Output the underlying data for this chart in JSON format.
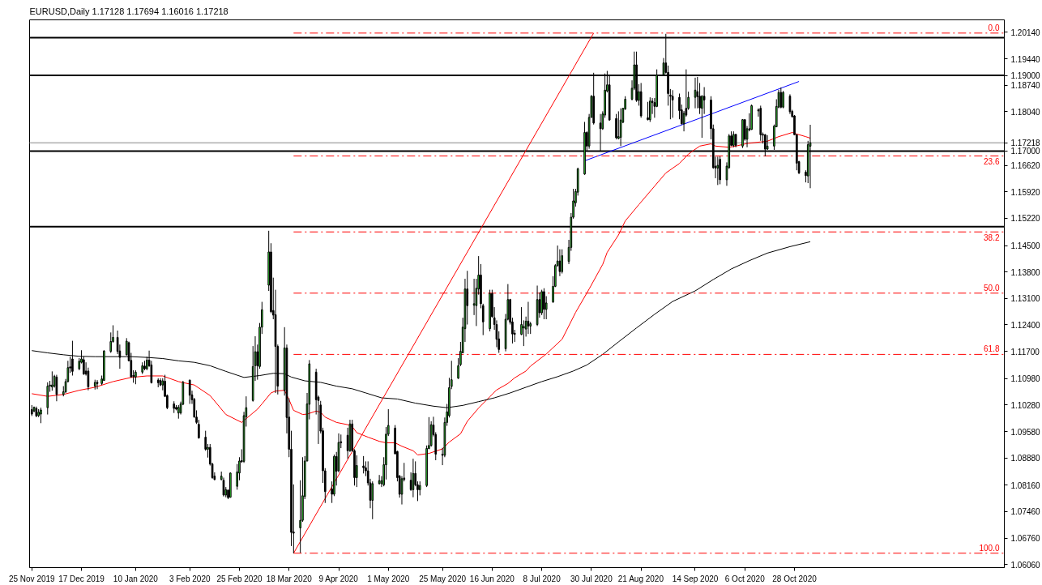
{
  "chart_data": {
    "type": "candlestick",
    "title": "EURUSD,Daily 1.17128 1.17694 1.16016 1.17218",
    "x": [
      "2019-11-25",
      "2019-11-26",
      "2019-11-27",
      "2019-11-28",
      "2019-11-29",
      "2019-12-02",
      "2019-12-03",
      "2019-12-04",
      "2019-12-05",
      "2019-12-06",
      "2019-12-09",
      "2019-12-10",
      "2019-12-11",
      "2019-12-12",
      "2019-12-13",
      "2019-12-16",
      "2019-12-17",
      "2019-12-18",
      "2019-12-19",
      "2019-12-20",
      "2019-12-23",
      "2019-12-24",
      "2019-12-26",
      "2019-12-27",
      "2019-12-30",
      "2019-12-31",
      "2020-01-02",
      "2020-01-03",
      "2020-01-06",
      "2020-01-07",
      "2020-01-08",
      "2020-01-09",
      "2020-01-10",
      "2020-01-13",
      "2020-01-14",
      "2020-01-15",
      "2020-01-16",
      "2020-01-17",
      "2020-01-20",
      "2020-01-21",
      "2020-01-22",
      "2020-01-23",
      "2020-01-24",
      "2020-01-27",
      "2020-01-28",
      "2020-01-29",
      "2020-01-30",
      "2020-01-31",
      "2020-02-03",
      "2020-02-04",
      "2020-02-05",
      "2020-02-06",
      "2020-02-07",
      "2020-02-10",
      "2020-02-11",
      "2020-02-12",
      "2020-02-13",
      "2020-02-14",
      "2020-02-17",
      "2020-02-18",
      "2020-02-19",
      "2020-02-20",
      "2020-02-21",
      "2020-02-24",
      "2020-02-25",
      "2020-02-26",
      "2020-02-27",
      "2020-02-28",
      "2020-03-02",
      "2020-03-03",
      "2020-03-04",
      "2020-03-05",
      "2020-03-06",
      "2020-03-09",
      "2020-03-10",
      "2020-03-11",
      "2020-03-12",
      "2020-03-13",
      "2020-03-16",
      "2020-03-17",
      "2020-03-18",
      "2020-03-19",
      "2020-03-20",
      "2020-03-23",
      "2020-03-24",
      "2020-03-25",
      "2020-03-26",
      "2020-03-27",
      "2020-03-30",
      "2020-03-31",
      "2020-04-01",
      "2020-04-02",
      "2020-04-03",
      "2020-04-06",
      "2020-04-07",
      "2020-04-08",
      "2020-04-09",
      "2020-04-10",
      "2020-04-13",
      "2020-04-14",
      "2020-04-15",
      "2020-04-16",
      "2020-04-17",
      "2020-04-20",
      "2020-04-21",
      "2020-04-22",
      "2020-04-23",
      "2020-04-24",
      "2020-04-27",
      "2020-04-28",
      "2020-04-29",
      "2020-04-30",
      "2020-05-01",
      "2020-05-04",
      "2020-05-05",
      "2020-05-06",
      "2020-05-07",
      "2020-05-08",
      "2020-05-11",
      "2020-05-12",
      "2020-05-13",
      "2020-05-14",
      "2020-05-15",
      "2020-05-18",
      "2020-05-19",
      "2020-05-20",
      "2020-05-21",
      "2020-05-22",
      "2020-05-25",
      "2020-05-26",
      "2020-05-27",
      "2020-05-28",
      "2020-05-29",
      "2020-06-01",
      "2020-06-02",
      "2020-06-03",
      "2020-06-04",
      "2020-06-05",
      "2020-06-08",
      "2020-06-09",
      "2020-06-10",
      "2020-06-11",
      "2020-06-12",
      "2020-06-15",
      "2020-06-16",
      "2020-06-17",
      "2020-06-18",
      "2020-06-19",
      "2020-06-22",
      "2020-06-23",
      "2020-06-24",
      "2020-06-25",
      "2020-06-26",
      "2020-06-29",
      "2020-06-30",
      "2020-07-01",
      "2020-07-02",
      "2020-07-03",
      "2020-07-06",
      "2020-07-07",
      "2020-07-08",
      "2020-07-09",
      "2020-07-10",
      "2020-07-13",
      "2020-07-14",
      "2020-07-15",
      "2020-07-16",
      "2020-07-17",
      "2020-07-20",
      "2020-07-21",
      "2020-07-22",
      "2020-07-23",
      "2020-07-24",
      "2020-07-27",
      "2020-07-28",
      "2020-07-29",
      "2020-07-30",
      "2020-07-31",
      "2020-08-03",
      "2020-08-04",
      "2020-08-05",
      "2020-08-06",
      "2020-08-07",
      "2020-08-10",
      "2020-08-11",
      "2020-08-12",
      "2020-08-13",
      "2020-08-14",
      "2020-08-17",
      "2020-08-18",
      "2020-08-19",
      "2020-08-20",
      "2020-08-21",
      "2020-08-24",
      "2020-08-25",
      "2020-08-26",
      "2020-08-27",
      "2020-08-28",
      "2020-08-31",
      "2020-09-01",
      "2020-09-02",
      "2020-09-03",
      "2020-09-04",
      "2020-09-07",
      "2020-09-08",
      "2020-09-09",
      "2020-09-10",
      "2020-09-11",
      "2020-09-14",
      "2020-09-15",
      "2020-09-16",
      "2020-09-17",
      "2020-09-18",
      "2020-09-21",
      "2020-09-22",
      "2020-09-23",
      "2020-09-24",
      "2020-09-25",
      "2020-09-28",
      "2020-09-29",
      "2020-09-30",
      "2020-10-01",
      "2020-10-02",
      "2020-10-05",
      "2020-10-06",
      "2020-10-07",
      "2020-10-08",
      "2020-10-09",
      "2020-10-12",
      "2020-10-13",
      "2020-10-14",
      "2020-10-15",
      "2020-10-16",
      "2020-10-19",
      "2020-10-20",
      "2020-10-21",
      "2020-10-22",
      "2020-10-23",
      "2020-10-26",
      "2020-10-27",
      "2020-10-28",
      "2020-10-29",
      "2020-10-30",
      "2020-11-02",
      "2020-11-03",
      "2020-11-04"
    ],
    "ohlc": [
      [
        1.1016,
        1.1028,
        1.0999,
        1.1004
      ],
      [
        1.1012,
        1.1024,
        1.1009,
        1.1022
      ],
      [
        1.1019,
        1.1024,
        1.0996,
        1.0999
      ],
      [
        1.1,
        1.1017,
        1.0996,
        1.1009
      ],
      [
        1.1004,
        1.1021,
        1.098,
        1.1015
      ],
      [
        1.1021,
        1.1088,
        1.1003,
        1.1078
      ],
      [
        1.1078,
        1.1092,
        1.1063,
        1.1081
      ],
      [
        1.1076,
        1.1117,
        1.1066,
        1.1081
      ],
      [
        1.1078,
        1.1108,
        1.1074,
        1.1104
      ],
      [
        1.1102,
        1.1108,
        1.1038,
        1.1056
      ],
      [
        1.1056,
        1.1078,
        1.1051,
        1.1063
      ],
      [
        1.1063,
        1.1097,
        1.106,
        1.109
      ],
      [
        1.109,
        1.1145,
        1.1088,
        1.1127
      ],
      [
        1.1129,
        1.1156,
        1.1113,
        1.1126
      ],
      [
        1.115,
        1.1198,
        1.1106,
        1.1117
      ],
      [
        1.1124,
        1.1152,
        1.112,
        1.1144
      ],
      [
        1.1141,
        1.1173,
        1.1138,
        1.115
      ],
      [
        1.1148,
        1.1156,
        1.1108,
        1.111
      ],
      [
        1.1118,
        1.1141,
        1.1106,
        1.111
      ],
      [
        1.1118,
        1.1127,
        1.1067,
        1.1076
      ],
      [
        1.1078,
        1.1095,
        1.1069,
        1.1088
      ],
      [
        1.1088,
        1.1094,
        1.107,
        1.1085
      ],
      [
        1.1085,
        1.1106,
        1.1081,
        1.1097
      ],
      [
        1.1093,
        1.1173,
        1.1092,
        1.1171
      ],
      [
        1.117,
        1.122,
        1.1166,
        1.1196
      ],
      [
        1.1196,
        1.1239,
        1.1193,
        1.1207
      ],
      [
        1.1207,
        1.1225,
        1.1163,
        1.117
      ],
      [
        1.1171,
        1.1188,
        1.1124,
        1.1154
      ],
      [
        1.1161,
        1.1205,
        1.1159,
        1.1197
      ],
      [
        1.1193,
        1.1196,
        1.1144,
        1.1145
      ],
      [
        1.1146,
        1.1166,
        1.1101,
        1.1102
      ],
      [
        1.1106,
        1.112,
        1.1087,
        1.1104
      ],
      [
        1.1102,
        1.112,
        1.1083,
        1.1115
      ],
      [
        1.1115,
        1.1141,
        1.111,
        1.1132
      ],
      [
        1.1131,
        1.1145,
        1.112,
        1.1124
      ],
      [
        1.1124,
        1.1156,
        1.112,
        1.1147
      ],
      [
        1.1147,
        1.1172,
        1.1129,
        1.1132
      ],
      [
        1.1134,
        1.1145,
        1.1085,
        1.1087
      ],
      [
        1.1094,
        1.1099,
        1.1075,
        1.1087
      ],
      [
        1.1093,
        1.1099,
        1.1078,
        1.1081
      ],
      [
        1.1081,
        1.1099,
        1.1067,
        1.1092
      ],
      [
        1.1091,
        1.1108,
        1.1049,
        1.1051
      ],
      [
        1.1053,
        1.1056,
        1.1017,
        1.1021
      ],
      [
        1.1031,
        1.1038,
        1.1007,
        1.1019
      ],
      [
        1.1022,
        1.1028,
        1.1014,
        1.1017
      ],
      [
        1.1007,
        1.1028,
        1.0992,
        1.1022
      ],
      [
        1.1007,
        1.1037,
        1.1003,
        1.1031
      ],
      [
        1.103,
        1.1092,
        1.1028,
        1.1088
      ],
      [
        1.1094,
        1.1095,
        1.1031,
        1.1054
      ],
      [
        1.1055,
        1.1066,
        1.1031,
        1.1042
      ],
      [
        1.1043,
        1.1047,
        1.0995,
        1.0996
      ],
      [
        1.0996,
        1.1014,
        1.0978,
        1.0982
      ],
      [
        1.0977,
        1.0989,
        1.0939,
        1.0941
      ],
      [
        1.0943,
        1.096,
        1.0907,
        1.0911
      ],
      [
        1.0911,
        1.0925,
        1.0889,
        1.0916
      ],
      [
        1.0916,
        1.0925,
        1.0868,
        1.0872
      ],
      [
        1.0872,
        1.0875,
        1.0833,
        1.0836
      ],
      [
        1.084,
        1.085,
        1.0829,
        1.0831
      ],
      [
        1.0831,
        1.0852,
        1.0829,
        1.084
      ],
      [
        1.0829,
        1.0836,
        1.0786,
        1.079
      ],
      [
        1.079,
        1.0811,
        1.0784,
        1.0804
      ],
      [
        1.0803,
        1.0804,
        1.0779,
        1.0783
      ],
      [
        1.0784,
        1.085,
        1.0783,
        1.0848
      ],
      [
        1.0813,
        1.0872,
        1.0804,
        1.0851
      ],
      [
        1.0848,
        1.089,
        1.0829,
        1.088
      ],
      [
        1.0881,
        1.0911,
        1.0875,
        1.0878
      ],
      [
        1.0879,
        1.101,
        1.0875,
        1.1
      ],
      [
        1.0997,
        1.1051,
        1.0971,
        1.1021
      ],
      [
        1.104,
        1.1184,
        1.1037,
        1.113
      ],
      [
        1.1132,
        1.121,
        1.1092,
        1.1169
      ],
      [
        1.1169,
        1.1188,
        1.1095,
        1.1132
      ],
      [
        1.113,
        1.1245,
        1.1124,
        1.1234
      ],
      [
        1.1234,
        1.1301,
        1.1216,
        1.128
      ],
      [
        1.1345,
        1.1489,
        1.133,
        1.1433
      ],
      [
        1.1433,
        1.1456,
        1.1271,
        1.1275
      ],
      [
        1.1278,
        1.1365,
        1.1255,
        1.1266
      ],
      [
        1.1267,
        1.1333,
        1.106,
        1.1183
      ],
      [
        1.1183,
        1.1188,
        1.1056,
        1.1078
      ],
      [
        1.1067,
        1.1234,
        1.1053,
        1.1179
      ],
      [
        1.1179,
        1.1188,
        1.0953,
        1.0995
      ],
      [
        1.0996,
        1.1046,
        1.089,
        1.0911
      ],
      [
        1.0911,
        1.096,
        1.0655,
        1.0691
      ],
      [
        1.0692,
        1.0818,
        1.0636,
        1.0689
      ],
      [
        1.0703,
        1.0829,
        1.0637,
        1.0723
      ],
      [
        1.0723,
        1.089,
        1.0719,
        1.0788
      ],
      [
        1.0786,
        1.0893,
        1.0779,
        1.088
      ],
      [
        1.088,
        1.106,
        1.0879,
        1.1031
      ],
      [
        1.103,
        1.1147,
        1.099,
        1.1137
      ],
      [
        1.1115,
        1.1124,
        1.1003,
        1.1042
      ],
      [
        1.1049,
        1.1053,
        1.0925,
        1.104
      ],
      [
        1.1028,
        1.1039,
        1.0953,
        1.0959
      ],
      [
        1.096,
        1.0968,
        1.0822,
        1.0854
      ],
      [
        1.0854,
        1.0861,
        1.0769,
        1.0799
      ],
      [
        1.0806,
        1.0826,
        1.0769,
        1.0792
      ],
      [
        1.0792,
        1.0897,
        1.0787,
        1.0892
      ],
      [
        1.0892,
        1.0904,
        1.0815,
        1.0853
      ],
      [
        1.0854,
        1.0953,
        1.085,
        1.0929
      ],
      [
        1.0931,
        1.095,
        1.0914,
        1.0928
      ],
      [
        1.0948,
        1.0968,
        1.0886,
        1.0907
      ],
      [
        1.0907,
        1.0989,
        1.0904,
        1.0978
      ],
      [
        1.0978,
        1.0989,
        1.0904,
        1.0907
      ],
      [
        1.0907,
        1.0911,
        1.0815,
        1.0836
      ],
      [
        1.0836,
        1.0895,
        1.0811,
        1.0868
      ],
      [
        1.0867,
        1.0893,
        1.0847,
        1.0862
      ],
      [
        1.0862,
        1.0879,
        1.084,
        1.0854
      ],
      [
        1.0854,
        1.0879,
        1.0815,
        1.0822
      ],
      [
        1.0822,
        1.0833,
        1.0755,
        1.0776
      ],
      [
        1.0776,
        1.0826,
        1.0726,
        1.082
      ],
      [
        1.082,
        1.0843,
        1.0818,
        1.0828
      ],
      [
        1.082,
        1.084,
        1.0811,
        1.0828
      ],
      [
        1.0817,
        1.089,
        1.0813,
        1.087
      ],
      [
        1.087,
        1.097,
        1.0831,
        1.0951
      ],
      [
        1.0951,
        1.1017,
        1.0946,
        1.0974
      ],
      [
        1.0967,
        1.0975,
        1.0897,
        1.0899
      ],
      [
        1.0905,
        1.0907,
        1.0826,
        1.0836
      ],
      [
        1.084,
        1.0843,
        1.0783,
        1.0792
      ],
      [
        1.0792,
        1.084,
        1.0765,
        1.0833
      ],
      [
        1.0835,
        1.0875,
        1.0826,
        1.0831
      ],
      [
        1.0829,
        1.085,
        1.0801,
        1.0804
      ],
      [
        1.0804,
        1.0886,
        1.0784,
        1.0847
      ],
      [
        1.0847,
        1.0879,
        1.0813,
        1.0817
      ],
      [
        1.0817,
        1.0826,
        1.0774,
        1.0804
      ],
      [
        1.0804,
        1.0826,
        1.0789,
        1.0815
      ],
      [
        1.0815,
        1.0921,
        1.0811,
        1.0913
      ],
      [
        1.0913,
        1.0996,
        1.0911,
        1.0921
      ],
      [
        1.0921,
        1.0985,
        1.0918,
        1.0976
      ],
      [
        1.0975,
        1.0997,
        1.0945,
        1.095
      ],
      [
        1.095,
        1.0956,
        1.0882,
        1.0898
      ],
      [
        1.0898,
        1.0915,
        1.0869,
        1.0895
      ],
      [
        1.0895,
        1.0995,
        1.089,
        1.0982
      ],
      [
        1.0982,
        1.1031,
        1.0973,
        1.101
      ],
      [
        1.1,
        1.11,
        1.0995,
        1.1074
      ],
      [
        1.1077,
        1.1145,
        1.107,
        1.1095
      ],
      [
        1.1099,
        1.1152,
        1.1097,
        1.1132
      ],
      [
        1.1135,
        1.1195,
        1.1131,
        1.117
      ],
      [
        1.1166,
        1.1259,
        1.1165,
        1.1234
      ],
      [
        1.123,
        1.1362,
        1.1195,
        1.1335
      ],
      [
        1.1335,
        1.1383,
        1.1241,
        1.1291
      ],
      [
        1.1292,
        1.1362,
        1.1266,
        1.1296
      ],
      [
        1.1291,
        1.1362,
        1.1237,
        1.1337
      ],
      [
        1.1335,
        1.1422,
        1.132,
        1.1372
      ],
      [
        1.1372,
        1.1401,
        1.1284,
        1.1296
      ],
      [
        1.1291,
        1.1296,
        1.1213,
        1.1248
      ],
      [
        1.123,
        1.1333,
        1.1223,
        1.1323
      ],
      [
        1.1323,
        1.1333,
        1.1259,
        1.1262
      ],
      [
        1.1259,
        1.1287,
        1.1227,
        1.1241
      ],
      [
        1.1241,
        1.1252,
        1.1181,
        1.1202
      ],
      [
        1.1203,
        1.1223,
        1.1166,
        1.1175
      ],
      [
        1.1177,
        1.1269,
        1.117,
        1.1255
      ],
      [
        1.1255,
        1.1348,
        1.1252,
        1.1307
      ],
      [
        1.1307,
        1.1309,
        1.1241,
        1.1247
      ],
      [
        1.1248,
        1.1259,
        1.1191,
        1.1216
      ],
      [
        1.1218,
        1.1227,
        1.1195,
        1.1215
      ],
      [
        1.1215,
        1.1287,
        1.1213,
        1.1241
      ],
      [
        1.1232,
        1.1252,
        1.1184,
        1.1236
      ],
      [
        1.1229,
        1.1262,
        1.1209,
        1.125
      ],
      [
        1.125,
        1.1301,
        1.1216,
        1.1237
      ],
      [
        1.1237,
        1.1248,
        1.1216,
        1.1243
      ],
      [
        1.1241,
        1.1344,
        1.1237,
        1.1307
      ],
      [
        1.1307,
        1.1326,
        1.1259,
        1.1272
      ],
      [
        1.1272,
        1.1333,
        1.1266,
        1.1328
      ],
      [
        1.1328,
        1.1337,
        1.1255,
        1.1281
      ],
      [
        1.1281,
        1.1316,
        1.1255,
        1.1298
      ],
      [
        1.1301,
        1.1369,
        1.1298,
        1.1342
      ],
      [
        1.1342,
        1.1401,
        1.134,
        1.1397
      ],
      [
        1.1397,
        1.145,
        1.1394,
        1.1409
      ],
      [
        1.1409,
        1.144,
        1.1369,
        1.1381
      ],
      [
        1.1381,
        1.144,
        1.1376,
        1.1423
      ],
      [
        1.1408,
        1.1465,
        1.1401,
        1.1445
      ],
      [
        1.1445,
        1.1536,
        1.1436,
        1.1525
      ],
      [
        1.1525,
        1.16,
        1.1521,
        1.1568
      ],
      [
        1.1563,
        1.16,
        1.1553,
        1.1593
      ],
      [
        1.1591,
        1.1656,
        1.1582,
        1.1653
      ],
      [
        1.1639,
        1.1777,
        1.1637,
        1.1749
      ],
      [
        1.1749,
        1.1752,
        1.1699,
        1.1713
      ],
      [
        1.1713,
        1.1798,
        1.1706,
        1.1789
      ],
      [
        1.1789,
        1.1848,
        1.1788,
        1.1845
      ],
      [
        1.1845,
        1.1907,
        1.177,
        1.1774
      ],
      [
        1.1774,
        1.1798,
        1.1699,
        1.1759
      ],
      [
        1.1759,
        1.1805,
        1.1756,
        1.1798
      ],
      [
        1.1795,
        1.1905,
        1.1788,
        1.1861
      ],
      [
        1.1859,
        1.1912,
        1.1855,
        1.1875
      ],
      [
        1.1875,
        1.1901,
        1.1781,
        1.1782
      ],
      [
        1.1786,
        1.1798,
        1.1731,
        1.1735
      ],
      [
        1.1733,
        1.1805,
        1.1731,
        1.1738
      ],
      [
        1.1736,
        1.1813,
        1.1713,
        1.1782
      ],
      [
        1.1776,
        1.1814,
        1.1774,
        1.1813
      ],
      [
        1.1811,
        1.1845,
        1.1809,
        1.1837
      ],
      [
        1.1837,
        1.1887,
        1.1834,
        1.1866
      ],
      [
        1.1866,
        1.1963,
        1.1861,
        1.1928
      ],
      [
        1.1928,
        1.1963,
        1.183,
        1.1834
      ],
      [
        1.1834,
        1.1877,
        1.182,
        1.1857
      ],
      [
        1.1857,
        1.188,
        1.1788,
        1.1793
      ],
      [
        1.1788,
        1.183,
        1.1781,
        1.1783
      ],
      [
        1.1783,
        1.1842,
        1.1777,
        1.1832
      ],
      [
        1.1832,
        1.184,
        1.1798,
        1.1828
      ],
      [
        1.1828,
        1.184,
        1.1788,
        1.1818
      ],
      [
        1.1818,
        1.1916,
        1.1816,
        1.1901
      ],
      [
        1.1901,
        1.1946,
        1.1899,
        1.1933
      ],
      [
        1.1933,
        1.201,
        1.1905,
        1.1908
      ],
      [
        1.1908,
        1.1926,
        1.182,
        1.1852
      ],
      [
        1.1848,
        1.1864,
        1.1784,
        1.1845
      ],
      [
        1.1845,
        1.1861,
        1.1788,
        1.1835
      ],
      [
        1.1842,
        1.1852,
        1.1784,
        1.1807
      ],
      [
        1.1809,
        1.1823,
        1.177,
        1.1772
      ],
      [
        1.1772,
        1.1806,
        1.1752,
        1.18
      ],
      [
        1.1813,
        1.1916,
        1.1791,
        1.1795
      ],
      [
        1.1813,
        1.1857,
        1.1809,
        1.1842
      ],
      [
        1.1842,
        1.1894,
        1.1813,
        1.1861
      ],
      [
        1.1857,
        1.1896,
        1.1813,
        1.1844
      ],
      [
        1.1845,
        1.188,
        1.1798,
        1.1814
      ],
      [
        1.1813,
        1.1848,
        1.1735,
        1.1845
      ],
      [
        1.1845,
        1.1869,
        1.1798,
        1.1835
      ],
      [
        1.1835,
        1.1845,
        1.1731,
        1.1759
      ],
      [
        1.1759,
        1.177,
        1.1653,
        1.1656
      ],
      [
        1.166,
        1.1685,
        1.1628,
        1.1655
      ],
      [
        1.1655,
        1.1685,
        1.161,
        1.1662
      ],
      [
        1.1678,
        1.1686,
        1.1612,
        1.1624
      ],
      [
        1.1624,
        1.167,
        1.1608,
        1.166
      ],
      [
        1.1656,
        1.1745,
        1.1653,
        1.174
      ],
      [
        1.174,
        1.1752,
        1.1713,
        1.1715
      ],
      [
        1.1715,
        1.1752,
        1.171,
        1.1744
      ],
      [
        1.1744,
        1.1745,
        1.171,
        1.1715
      ],
      [
        1.1713,
        1.1784,
        1.1708,
        1.1783
      ],
      [
        1.1783,
        1.1784,
        1.1727,
        1.1731
      ],
      [
        1.1731,
        1.1766,
        1.171,
        1.1759
      ],
      [
        1.1759,
        1.18,
        1.1752,
        1.1756
      ],
      [
        1.1757,
        1.1823,
        1.1756,
        1.182
      ],
      [
        1.1809,
        1.1813,
        1.1791,
        1.1806
      ],
      [
        1.1813,
        1.182,
        1.1727,
        1.1743
      ],
      [
        1.1744,
        1.1749,
        1.172,
        1.1742
      ],
      [
        1.1743,
        1.1745,
        1.1686,
        1.1705
      ],
      [
        1.1705,
        1.1742,
        1.1703,
        1.1713
      ],
      [
        1.1713,
        1.177,
        1.1703,
        1.1766
      ],
      [
        1.1764,
        1.1837,
        1.1763,
        1.1818
      ],
      [
        1.1816,
        1.1862,
        1.1813,
        1.1855
      ],
      [
        1.1855,
        1.1868,
        1.1813,
        1.1816
      ],
      [
        1.1816,
        1.1859,
        1.1813,
        1.1855
      ],
      [
        1.1845,
        1.185,
        1.1798,
        1.1804
      ],
      [
        1.1805,
        1.1809,
        1.1788,
        1.1791
      ],
      [
        1.1793,
        1.1795,
        1.1742,
        1.1743
      ],
      [
        1.1743,
        1.1745,
        1.1649,
        1.1668
      ],
      [
        1.1672,
        1.1674,
        1.1639,
        1.1642
      ],
      [
        1.1644,
        1.1649,
        1.1617,
        1.1635
      ],
      [
        1.1634,
        1.1727,
        1.1615,
        1.1717
      ],
      [
        1.17128,
        1.17694,
        1.16016,
        1.17218
      ]
    ],
    "colors": [
      "#000000",
      "#32cd32",
      "#000000",
      "#32cd32",
      "#32cd32",
      "#32cd32",
      "#32cd32",
      "#32cd32",
      "#32cd32",
      "#000000",
      "#32cd32",
      "#32cd32",
      "#32cd32",
      "#000000",
      "#000000",
      "#32cd32",
      "#32cd32",
      "#000000",
      "#000000",
      "#000000",
      "#32cd32",
      "#000000",
      "#32cd32",
      "#32cd32",
      "#32cd32",
      "#32cd32",
      "#000000",
      "#000000",
      "#32cd32",
      "#000000",
      "#000000",
      "#000000",
      "#32cd32",
      "#32cd32",
      "#000000",
      "#32cd32",
      "#000000",
      "#000000",
      "#000000",
      "#000000",
      "#32cd32",
      "#000000",
      "#000000",
      "#000000",
      "#000000",
      "#32cd32",
      "#32cd32",
      "#32cd32",
      "#000000",
      "#000000",
      "#000000",
      "#000000",
      "#000000",
      "#000000",
      "#32cd32",
      "#000000",
      "#000000",
      "#000000",
      "#32cd32",
      "#000000",
      "#32cd32",
      "#000000",
      "#32cd32",
      "#32cd32",
      "#32cd32",
      "#000000",
      "#32cd32",
      "#32cd32",
      "#32cd32",
      "#32cd32",
      "#000000",
      "#32cd32",
      "#32cd32",
      "#32cd32",
      "#000000",
      "#000000",
      "#000000",
      "#000000",
      "#32cd32",
      "#000000",
      "#000000",
      "#000000",
      "#000000",
      "#32cd32",
      "#32cd32",
      "#32cd32",
      "#32cd32",
      "#32cd32",
      "#000000",
      "#000000",
      "#000000",
      "#000000",
      "#000000",
      "#000000",
      "#32cd32",
      "#000000",
      "#32cd32",
      "#000000",
      "#000000",
      "#32cd32",
      "#000000",
      "#000000",
      "#32cd32",
      "#000000",
      "#000000",
      "#000000",
      "#000000",
      "#32cd32",
      "#32cd32",
      "#32cd32",
      "#32cd32",
      "#32cd32",
      "#32cd32",
      "#000000",
      "#000000",
      "#000000",
      "#32cd32",
      "#000000",
      "#000000",
      "#32cd32",
      "#000000",
      "#000000",
      "#32cd32",
      "#32cd32",
      "#32cd32",
      "#32cd32",
      "#000000",
      "#000000",
      "#000000",
      "#32cd32",
      "#32cd32",
      "#32cd32",
      "#32cd32",
      "#32cd32",
      "#32cd32",
      "#32cd32",
      "#32cd32",
      "#000000",
      "#32cd32",
      "#32cd32",
      "#32cd32",
      "#000000",
      "#000000",
      "#32cd32",
      "#000000",
      "#000000",
      "#000000",
      "#000000",
      "#32cd32",
      "#32cd32",
      "#000000",
      "#000000",
      "#000000",
      "#32cd32",
      "#32cd32",
      "#32cd32",
      "#000000",
      "#32cd32",
      "#32cd32",
      "#000000",
      "#32cd32",
      "#000000",
      "#32cd32",
      "#32cd32",
      "#32cd32",
      "#32cd32",
      "#000000",
      "#32cd32",
      "#32cd32",
      "#32cd32",
      "#32cd32",
      "#32cd32",
      "#32cd32",
      "#32cd32",
      "#000000",
      "#32cd32",
      "#32cd32",
      "#000000",
      "#000000",
      "#32cd32",
      "#32cd32",
      "#32cd32",
      "#000000",
      "#000000",
      "#32cd32",
      "#32cd32",
      "#32cd32",
      "#32cd32",
      "#32cd32",
      "#32cd32",
      "#000000",
      "#32cd32",
      "#000000",
      "#000000",
      "#32cd32",
      "#000000",
      "#000000",
      "#32cd32",
      "#32cd32",
      "#000000",
      "#000000",
      "#000000",
      "#000000",
      "#000000",
      "#000000",
      "#32cd32",
      "#000000",
      "#32cd32",
      "#32cd32",
      "#000000",
      "#000000",
      "#32cd32",
      "#000000",
      "#000000",
      "#000000",
      "#000000",
      "#32cd32",
      "#000000",
      "#32cd32",
      "#32cd32",
      "#000000",
      "#32cd32",
      "#000000",
      "#32cd32",
      "#000000",
      "#32cd32",
      "#000000",
      "#32cd32",
      "#000000",
      "#000000",
      "#000000",
      "#000000",
      "#32cd32",
      "#32cd32",
      "#32cd32",
      "#32cd32",
      "#000000",
      "#32cd32",
      "#000000",
      "#000000",
      "#000000",
      "#000000",
      "#000000",
      "#000000",
      "#32cd32",
      "#32cd32"
    ],
    "series": [
      {
        "type": "line",
        "color": "#ff0000",
        "x": [
          "2019-11-25",
          "2019-12-02",
          "2019-12-09",
          "2019-12-16",
          "2019-12-23",
          "2019-12-31",
          "2020-01-08",
          "2020-01-15",
          "2020-01-22",
          "2020-01-29",
          "2020-02-05",
          "2020-02-12",
          "2020-02-19",
          "2020-02-26",
          "2020-03-04",
          "2020-03-06",
          "2020-03-10",
          "2020-03-12",
          "2020-03-16",
          "2020-03-18",
          "2020-03-20",
          "2020-03-24",
          "2020-03-26",
          "2020-03-30",
          "2020-04-01",
          "2020-04-03",
          "2020-04-08",
          "2020-04-13",
          "2020-04-15",
          "2020-04-17",
          "2020-04-22",
          "2020-04-27",
          "2020-04-30",
          "2020-05-04",
          "2020-05-07",
          "2020-05-12",
          "2020-05-14",
          "2020-05-19",
          "2020-05-25",
          "2020-05-28",
          "2020-06-02",
          "2020-06-05",
          "2020-06-10",
          "2020-06-15",
          "2020-06-18",
          "2020-06-23",
          "2020-06-26",
          "2020-07-01",
          "2020-07-03",
          "2020-07-10",
          "2020-07-17",
          "2020-07-23",
          "2020-07-29",
          "2020-08-04",
          "2020-08-06",
          "2020-08-11",
          "2020-08-14",
          "2020-08-20",
          "2020-08-27",
          "2020-09-01",
          "2020-09-07",
          "2020-09-11",
          "2020-09-16",
          "2020-09-21",
          "2020-09-23",
          "2020-09-29",
          "2020-10-02",
          "2020-10-07",
          "2020-10-13",
          "2020-10-16",
          "2020-10-21",
          "2020-10-27",
          "2020-10-29",
          "2020-11-02",
          "2020-11-04"
        ],
        "values": [
          1.1058,
          1.1051,
          1.1056,
          1.1067,
          1.1075,
          1.109,
          1.1101,
          1.1105,
          1.1105,
          1.109,
          1.1081,
          1.1053,
          1.1003,
          1.0982,
          1.1017,
          1.1031,
          1.106,
          1.1065,
          1.1067,
          1.1042,
          1.1014,
          1.1003,
          1.1004,
          1.1012,
          1.1009,
          1.0996,
          1.0982,
          1.0976,
          1.0971,
          1.0955,
          1.0943,
          1.0932,
          1.0928,
          1.0928,
          1.0919,
          1.0907,
          1.0896,
          1.09,
          1.0912,
          1.093,
          1.0952,
          1.0985,
          1.102,
          1.105,
          1.1068,
          1.1085,
          1.11,
          1.1118,
          1.1131,
          1.1163,
          1.1202,
          1.1273,
          1.1335,
          1.14,
          1.1432,
          1.1478,
          1.1515,
          1.1558,
          1.1607,
          1.1642,
          1.1667,
          1.1692,
          1.1713,
          1.1719,
          1.1713,
          1.171,
          1.1713,
          1.172,
          1.1724,
          1.1726,
          1.1738,
          1.1749,
          1.1745,
          1.1738,
          1.1734
        ]
      },
      {
        "type": "line",
        "color": "#000000",
        "x": [
          "2019-11-25",
          "2019-12-02",
          "2019-12-09",
          "2019-12-16",
          "2019-12-23",
          "2020-01-08",
          "2020-01-15",
          "2020-01-22",
          "2020-01-29",
          "2020-02-05",
          "2020-02-12",
          "2020-02-19",
          "2020-02-24",
          "2020-02-27",
          "2020-03-05",
          "2020-03-11",
          "2020-03-16",
          "2020-03-19",
          "2020-03-25",
          "2020-04-01",
          "2020-04-08",
          "2020-04-15",
          "2020-04-21",
          "2020-04-28",
          "2020-05-05",
          "2020-05-13",
          "2020-05-21",
          "2020-05-27",
          "2020-06-03",
          "2020-06-10",
          "2020-06-17",
          "2020-06-24",
          "2020-07-01",
          "2020-07-08",
          "2020-07-15",
          "2020-07-22",
          "2020-07-28",
          "2020-08-04",
          "2020-08-11",
          "2020-08-19",
          "2020-08-27",
          "2020-09-04",
          "2020-09-14",
          "2020-09-22",
          "2020-09-30",
          "2020-10-08",
          "2020-10-16",
          "2020-10-26",
          "2020-11-04"
        ],
        "values": [
          1.1172,
          1.1166,
          1.1161,
          1.1157,
          1.1156,
          1.1156,
          1.1154,
          1.1151,
          1.1145,
          1.1141,
          1.1132,
          1.1117,
          1.1107,
          1.1101,
          1.1106,
          1.1112,
          1.1111,
          1.1102,
          1.1092,
          1.1088,
          1.1078,
          1.1071,
          1.106,
          1.1047,
          1.1044,
          1.1033,
          1.1025,
          1.1021,
          1.1027,
          1.1037,
          1.1047,
          1.106,
          1.1075,
          1.109,
          1.1103,
          1.1118,
          1.1134,
          1.1162,
          1.1195,
          1.1232,
          1.1268,
          1.1302,
          1.133,
          1.136,
          1.1388,
          1.141,
          1.143,
          1.1447,
          1.146
        ]
      },
      {
        "type": "line",
        "color": "#ff0000",
        "x": [
          "2020-03-20",
          "2020-07-31"
        ],
        "values": [
          1.0636,
          1.2012
        ]
      },
      {
        "type": "line",
        "color": "#0000ff",
        "x": [
          "2020-07-27",
          "2020-10-30"
        ],
        "values": [
          1.1674,
          1.1884
        ]
      },
      {
        "type": "line",
        "name": "0.0",
        "color": "#ff0000",
        "line_style": "dashed",
        "x": [
          "2020-03-20",
          "2021-01-29"
        ],
        "values": [
          1.2012,
          1.2012
        ]
      },
      {
        "type": "line",
        "name": "23.6",
        "color": "#ff0000",
        "line_style": "dashed",
        "x": [
          "2020-03-20",
          "2021-01-29"
        ],
        "values": [
          1.1687,
          1.1687
        ]
      },
      {
        "type": "line",
        "name": "38.2",
        "color": "#ff0000",
        "line_style": "dashed",
        "x": [
          "2020-03-20",
          "2021-01-29"
        ],
        "values": [
          1.1486,
          1.1486
        ]
      },
      {
        "type": "line",
        "name": "50.0",
        "color": "#ff0000",
        "line_style": "dashed",
        "x": [
          "2020-03-20",
          "2021-01-29"
        ],
        "values": [
          1.1324,
          1.1324
        ]
      },
      {
        "type": "line",
        "name": "61.8",
        "color": "#ff0000",
        "line_style": "dashed",
        "x": [
          "2020-03-20",
          "2021-01-29"
        ],
        "values": [
          1.1162,
          1.1162
        ]
      },
      {
        "type": "line",
        "name": "100.0",
        "color": "#ff0000",
        "line_style": "dashed",
        "x": [
          "2020-03-20",
          "2021-01-29"
        ],
        "values": [
          1.0636,
          1.0636
        ]
      }
    ],
    "ref_lines": [
      {
        "axis": "y",
        "value": 1.2,
        "color": "#000000"
      },
      {
        "axis": "y",
        "value": 1.19,
        "label": "1.19000",
        "color": "#000000"
      },
      {
        "axis": "y",
        "value": 1.17218,
        "label": "1.17218",
        "color": "#c0c0c0"
      },
      {
        "axis": "y",
        "value": 1.17,
        "label": "1.17000",
        "color": "#000000"
      },
      {
        "axis": "y",
        "value": 1.15,
        "color": "#000000"
      }
    ],
    "xlim": [
      "2019-11-24",
      "2021-01-29"
    ],
    "xticks": [
      {
        "value": "2019-11-25",
        "label": "25 Nov 2019"
      },
      {
        "value": "2019-12-17",
        "label": "17 Dec 2019"
      },
      {
        "value": "2020-01-10",
        "label": "10 Jan 2020"
      },
      {
        "value": "2020-02-03",
        "label": "3 Feb 2020"
      },
      {
        "value": "2020-02-25",
        "label": "25 Feb 2020"
      },
      {
        "value": "2020-03-18",
        "label": "18 Mar 2020"
      },
      {
        "value": "2020-04-09",
        "label": "9 Apr 2020"
      },
      {
        "value": "2020-05-01",
        "label": "1 May 2020"
      },
      {
        "value": "2020-05-25",
        "label": "25 May 2020"
      },
      {
        "value": "2020-06-16",
        "label": "16 Jun 2020"
      },
      {
        "value": "2020-07-08",
        "label": "8 Jul 2020"
      },
      {
        "value": "2020-07-30",
        "label": "30 Jul 2020"
      },
      {
        "value": "2020-08-21",
        "label": "21 Aug 2020"
      },
      {
        "value": "2020-09-14",
        "label": "14 Sep 2020"
      },
      {
        "value": "2020-10-06",
        "label": "6 Oct 2020"
      },
      {
        "value": "2020-10-28",
        "label": "28 Oct 2020"
      }
    ],
    "ylim": [
      1.0598,
      1.2047
    ],
    "yticks": [
      {
        "value": 1.0606,
        "label": "1.06060"
      },
      {
        "value": 1.0676,
        "label": "1.06760"
      },
      {
        "value": 1.0746,
        "label": "1.07460"
      },
      {
        "value": 1.0816,
        "label": "1.08160"
      },
      {
        "value": 1.0888,
        "label": "1.08880"
      },
      {
        "value": 1.0958,
        "label": "1.09580"
      },
      {
        "value": 1.1028,
        "label": "1.10280"
      },
      {
        "value": 1.1098,
        "label": "1.10980"
      },
      {
        "value": 1.117,
        "label": "1.11700"
      },
      {
        "value": 1.124,
        "label": "1.12400"
      },
      {
        "value": 1.131,
        "label": "1.13100"
      },
      {
        "value": 1.138,
        "label": "1.13800"
      },
      {
        "value": 1.145,
        "label": "1.14500"
      },
      {
        "value": 1.1522,
        "label": "1.15220"
      },
      {
        "value": 1.1592,
        "label": "1.15920"
      },
      {
        "value": 1.1662,
        "label": "1.16620"
      },
      {
        "value": 1.1804,
        "label": "1.18040"
      },
      {
        "value": 1.1874,
        "label": "1.18740"
      },
      {
        "value": 1.1944,
        "label": "1.19440"
      },
      {
        "value": 1.2014,
        "label": "1.20140"
      }
    ]
  }
}
